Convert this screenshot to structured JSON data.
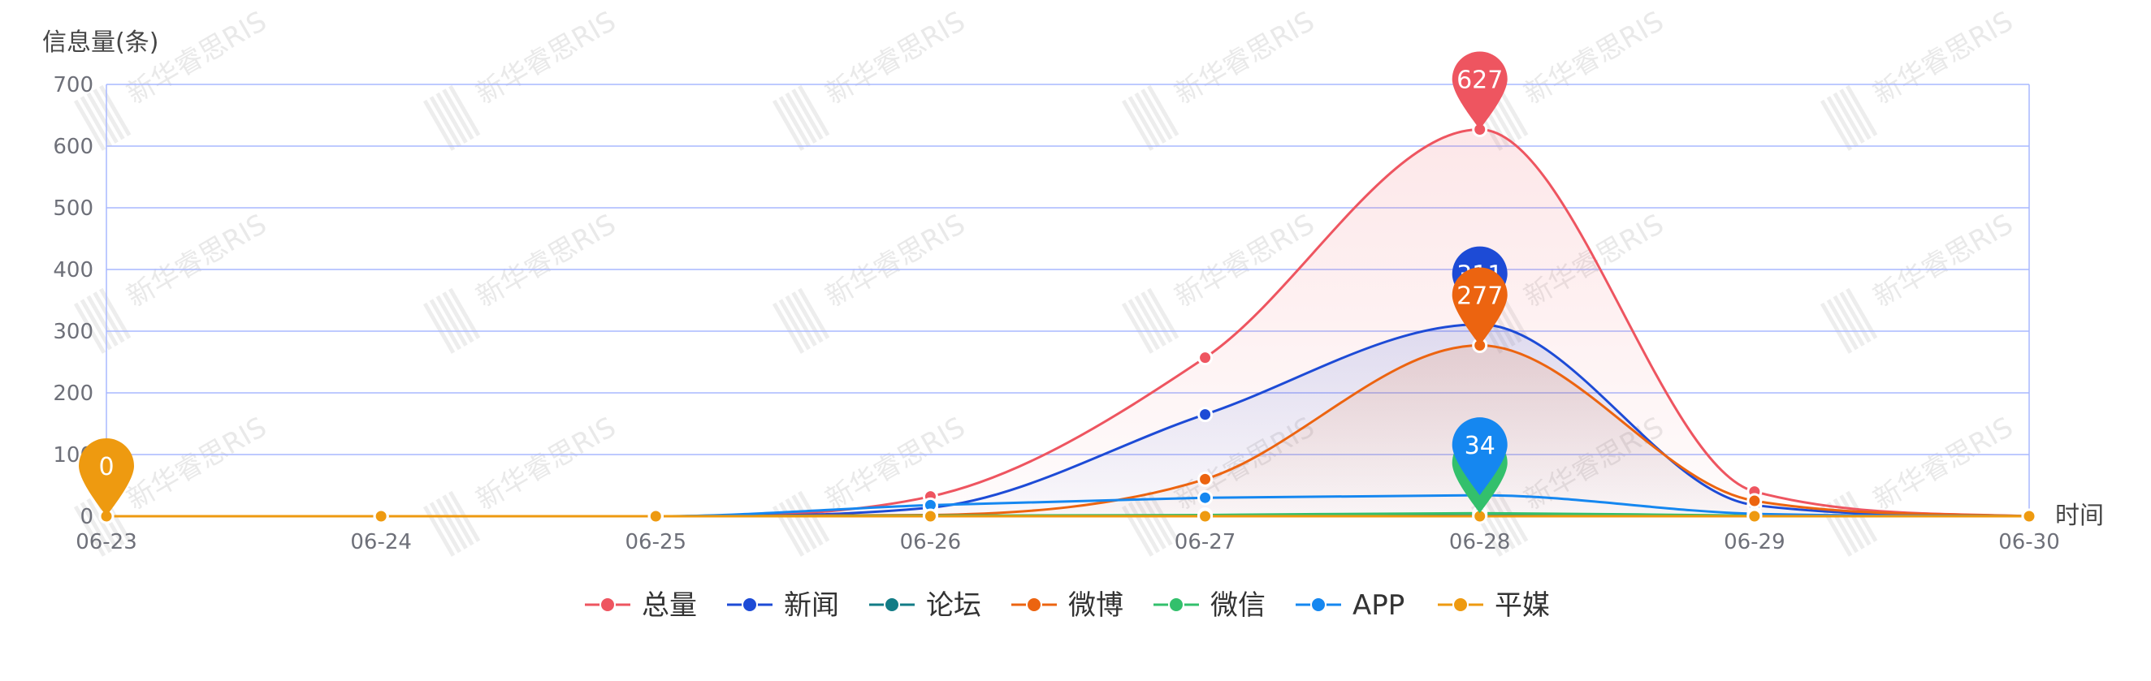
{
  "chart_data": {
    "type": "line",
    "ylabel": "信息量(条)",
    "xlabel": "时间",
    "categories": [
      "06-23",
      "06-24",
      "06-25",
      "06-26",
      "06-27",
      "06-28",
      "06-29",
      "06-30"
    ],
    "ylim": [
      0,
      700
    ],
    "yticks": [
      0,
      100,
      200,
      300,
      400,
      500,
      600,
      700
    ],
    "grid": true,
    "smooth": true,
    "legend_position": "bottom-center",
    "series": [
      {
        "name": "总量",
        "color": "#ee5560",
        "values": [
          0,
          0,
          0,
          32,
          257,
          627,
          40,
          0
        ],
        "area": true,
        "max_label": "627"
      },
      {
        "name": "新闻",
        "color": "#1d4bd6",
        "values": [
          0,
          0,
          0,
          14,
          165,
          311,
          18,
          0
        ],
        "area": true,
        "max_label": "311"
      },
      {
        "name": "论坛",
        "color": "#127c86",
        "values": [
          0,
          0,
          0,
          0,
          0,
          1,
          0,
          0
        ],
        "area": false
      },
      {
        "name": "微博",
        "color": "#ec6410",
        "values": [
          0,
          0,
          0,
          2,
          60,
          277,
          25,
          0
        ],
        "area": true,
        "max_label": "277"
      },
      {
        "name": "微信",
        "color": "#33c06c",
        "values": [
          0,
          0,
          0,
          1,
          2,
          5,
          1,
          0
        ],
        "area": false,
        "max_label": ""
      },
      {
        "name": "APP",
        "color": "#1587f0",
        "values": [
          0,
          0,
          0,
          18,
          30,
          34,
          4,
          0
        ],
        "area": false,
        "max_label": "34"
      },
      {
        "name": "平媒",
        "color": "#ee9a10",
        "values": [
          0,
          0,
          0,
          0,
          0,
          0,
          0,
          0
        ],
        "area": false,
        "max_label": "0"
      }
    ]
  },
  "watermark": {
    "text": "新华睿思RIS"
  }
}
